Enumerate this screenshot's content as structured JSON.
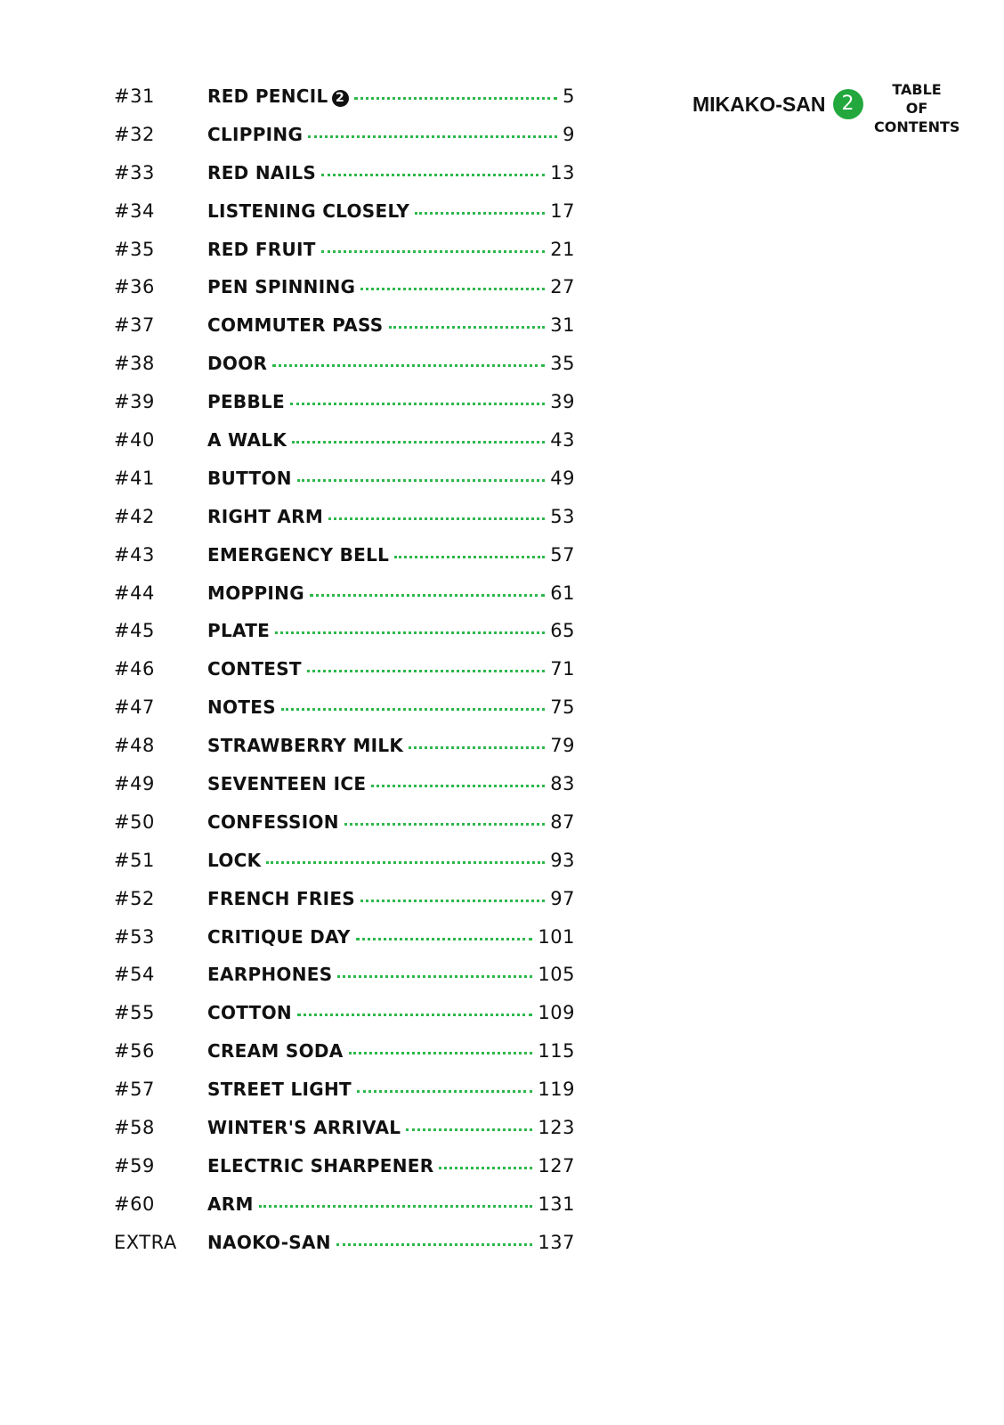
{
  "header": {
    "series": "MIKAKO-SAN",
    "volume": "2",
    "heading": [
      "TABLE",
      "OF",
      "CONTENTS"
    ]
  },
  "accent_color": "#22a83c",
  "entries": [
    {
      "num": "#31",
      "title": "RED PENCIL",
      "vol": "2",
      "page": "5"
    },
    {
      "num": "#32",
      "title": "CLIPPING",
      "page": "9"
    },
    {
      "num": "#33",
      "title": "RED NAILS",
      "page": "13"
    },
    {
      "num": "#34",
      "title": "LISTENING CLOSELY",
      "page": "17"
    },
    {
      "num": "#35",
      "title": "RED FRUIT",
      "page": "21"
    },
    {
      "num": "#36",
      "title": "PEN SPINNING",
      "page": "27"
    },
    {
      "num": "#37",
      "title": "COMMUTER PASS",
      "page": "31"
    },
    {
      "num": "#38",
      "title": "DOOR",
      "page": "35"
    },
    {
      "num": "#39",
      "title": "PEBBLE",
      "page": "39"
    },
    {
      "num": "#40",
      "title": "A WALK",
      "page": "43"
    },
    {
      "num": "#41",
      "title": "BUTTON",
      "page": "49"
    },
    {
      "num": "#42",
      "title": "RIGHT ARM",
      "page": "53"
    },
    {
      "num": "#43",
      "title": "EMERGENCY BELL",
      "page": "57"
    },
    {
      "num": "#44",
      "title": "MOPPING",
      "page": "61"
    },
    {
      "num": "#45",
      "title": "PLATE",
      "page": "65"
    },
    {
      "num": "#46",
      "title": "CONTEST",
      "page": "71"
    },
    {
      "num": "#47",
      "title": "NOTES",
      "page": "75"
    },
    {
      "num": "#48",
      "title": "STRAWBERRY MILK",
      "page": "79"
    },
    {
      "num": "#49",
      "title": "SEVENTEEN ICE",
      "page": "83"
    },
    {
      "num": "#50",
      "title": "CONFESSION",
      "page": "87"
    },
    {
      "num": "#51",
      "title": "LOCK",
      "page": "93"
    },
    {
      "num": "#52",
      "title": "FRENCH FRIES",
      "page": "97"
    },
    {
      "num": "#53",
      "title": "CRITIQUE DAY",
      "page": "101"
    },
    {
      "num": "#54",
      "title": "EARPHONES",
      "page": "105"
    },
    {
      "num": "#55",
      "title": "COTTON",
      "page": "109"
    },
    {
      "num": "#56",
      "title": "CREAM SODA",
      "page": "115"
    },
    {
      "num": "#57",
      "title": "STREET LIGHT",
      "page": "119"
    },
    {
      "num": "#58",
      "title": "WINTER'S ARRIVAL",
      "page": "123"
    },
    {
      "num": "#59",
      "title": "ELECTRIC SHARPENER",
      "page": "127"
    },
    {
      "num": "#60",
      "title": "ARM",
      "page": "131"
    },
    {
      "num": "EXTRA",
      "title": "NAOKO-SAN",
      "page": "137"
    }
  ]
}
